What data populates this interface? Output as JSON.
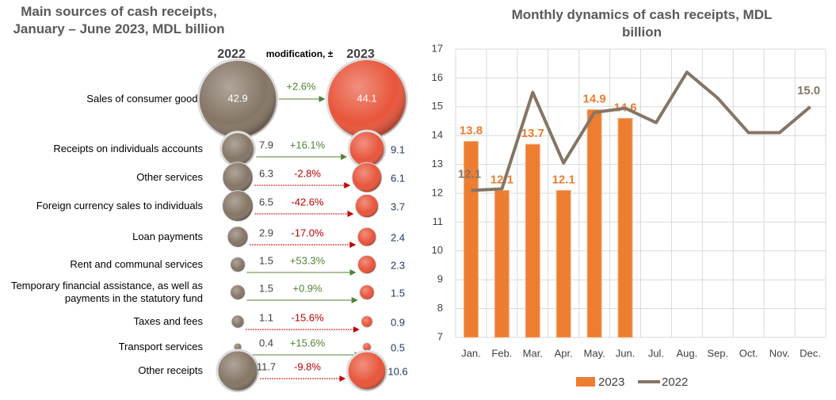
{
  "chart_data": [
    {
      "type": "bubble_compare",
      "title": "Main sources of cash receipts, January – June 2023, MDL billion",
      "modification_label": "modification, ±",
      "categories": [
        "Sales of consumer goods",
        "Receipts on individuals accounts",
        "Other services",
        "Foreign currency sales to individuals",
        "Loan payments",
        "Rent and communal services",
        "Temporary financial assistance, as well as payments in the statutory fund",
        "Taxes and fees",
        "Transport services",
        "Other receipts"
      ],
      "series": [
        {
          "name": "2022",
          "color": "#857565",
          "values": [
            42.9,
            7.9,
            6.3,
            6.5,
            2.9,
            1.5,
            1.5,
            1.1,
            0.4,
            11.7
          ]
        },
        {
          "name": "2023",
          "color": "#e8553a",
          "values": [
            44.1,
            9.1,
            6.1,
            3.7,
            2.4,
            2.3,
            1.5,
            0.9,
            0.5,
            10.6
          ]
        }
      ],
      "change": {
        "values": [
          2.6,
          16.1,
          -2.8,
          -42.6,
          -17.0,
          53.3,
          0.9,
          -15.6,
          15.6,
          -9.8
        ],
        "value_labels": [
          "+2.6%",
          "+16.1%",
          "-2.8%",
          "-42.6%",
          "-17.0%",
          "+53.3%",
          "+0.9%",
          "-15.6%",
          "+15.6%",
          "-9.8%"
        ]
      }
    },
    {
      "type": "bar_line",
      "title": "Monthly dynamics of cash receipts, MDL billion",
      "categories": [
        "Jan.",
        "Feb.",
        "Mar.",
        "Apr.",
        "May.",
        "Jun.",
        "Jul.",
        "Aug.",
        "Sep.",
        "Oct.",
        "Nov.",
        "Dec."
      ],
      "series": [
        {
          "name": "2023",
          "type": "bar",
          "color": "#ed7d31",
          "values": [
            13.8,
            12.1,
            13.7,
            12.1,
            14.9,
            14.6,
            null,
            null,
            null,
            null,
            null,
            null
          ]
        },
        {
          "name": "2022",
          "type": "line",
          "color": "#857565",
          "values": [
            12.1,
            12.15,
            15.5,
            13.05,
            14.8,
            14.95,
            14.45,
            16.2,
            15.3,
            14.1,
            14.1,
            15.0
          ],
          "value_labels": [
            "12.1",
            null,
            null,
            null,
            null,
            null,
            null,
            null,
            null,
            null,
            null,
            "15.0"
          ]
        }
      ],
      "ylim": [
        7,
        17
      ],
      "yticks": [
        7,
        8,
        9,
        10,
        11,
        12,
        13,
        14,
        15,
        16,
        17
      ],
      "legend": "bottom"
    }
  ]
}
